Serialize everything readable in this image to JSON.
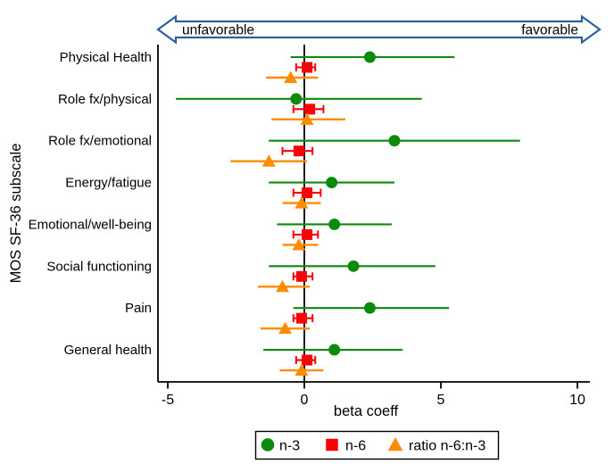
{
  "chart_data": {
    "type": "forest",
    "title": "",
    "xlabel": "beta coeff",
    "ylabel": "MOS SF-36 subscale",
    "x_ticks": [
      -5,
      0,
      5,
      10
    ],
    "xlim": [
      -5.4,
      10.5
    ],
    "grid": false,
    "legend_position": "bottom-center",
    "arrow_color": "#2e5f9f",
    "annotations": {
      "left": "unfavorable",
      "right": "favorable"
    },
    "series": [
      {
        "name": "n-3",
        "marker": "circle",
        "color": "#0b8a0b",
        "caps": false
      },
      {
        "name": "n-6",
        "marker": "square",
        "color": "#fb0007",
        "caps": true
      },
      {
        "name": "ratio n-6:n-3",
        "marker": "triangle",
        "color": "#ff8c00",
        "caps": false
      }
    ],
    "rows": [
      {
        "category": "Physical Health",
        "points": [
          {
            "est": 2.4,
            "lo": -0.5,
            "hi": 5.5
          },
          {
            "est": 0.1,
            "lo": -0.3,
            "hi": 0.4
          },
          {
            "est": -0.5,
            "lo": -1.4,
            "hi": 0.5
          }
        ]
      },
      {
        "category": "Role fx/physical",
        "points": [
          {
            "est": -0.3,
            "lo": -4.7,
            "hi": 4.3
          },
          {
            "est": 0.2,
            "lo": -0.4,
            "hi": 0.7
          },
          {
            "est": 0.1,
            "lo": -1.2,
            "hi": 1.5
          }
        ]
      },
      {
        "category": "Role fx/emotional",
        "points": [
          {
            "est": 3.3,
            "lo": -1.3,
            "hi": 7.9
          },
          {
            "est": -0.2,
            "lo": -0.8,
            "hi": 0.3
          },
          {
            "est": -1.3,
            "lo": -2.7,
            "hi": 0.1
          }
        ]
      },
      {
        "category": "Energy/fatigue",
        "points": [
          {
            "est": 1.0,
            "lo": -1.3,
            "hi": 3.3
          },
          {
            "est": 0.1,
            "lo": -0.4,
            "hi": 0.6
          },
          {
            "est": -0.1,
            "lo": -0.8,
            "hi": 0.6
          }
        ]
      },
      {
        "category": "Emotional/well-being",
        "points": [
          {
            "est": 1.1,
            "lo": -1.0,
            "hi": 3.2
          },
          {
            "est": 0.1,
            "lo": -0.4,
            "hi": 0.5
          },
          {
            "est": -0.2,
            "lo": -0.8,
            "hi": 0.5
          }
        ]
      },
      {
        "category": "Social functioning",
        "points": [
          {
            "est": 1.8,
            "lo": -1.3,
            "hi": 4.8
          },
          {
            "est": -0.1,
            "lo": -0.4,
            "hi": 0.3
          },
          {
            "est": -0.8,
            "lo": -1.7,
            "hi": 0.2
          }
        ]
      },
      {
        "category": "Pain",
        "points": [
          {
            "est": 2.4,
            "lo": -0.4,
            "hi": 5.3
          },
          {
            "est": -0.1,
            "lo": -0.4,
            "hi": 0.3
          },
          {
            "est": -0.7,
            "lo": -1.6,
            "hi": 0.2
          }
        ]
      },
      {
        "category": "General health",
        "points": [
          {
            "est": 1.1,
            "lo": -1.5,
            "hi": 3.6
          },
          {
            "est": 0.1,
            "lo": -0.3,
            "hi": 0.4
          },
          {
            "est": -0.1,
            "lo": -0.9,
            "hi": 0.7
          }
        ]
      }
    ]
  }
}
